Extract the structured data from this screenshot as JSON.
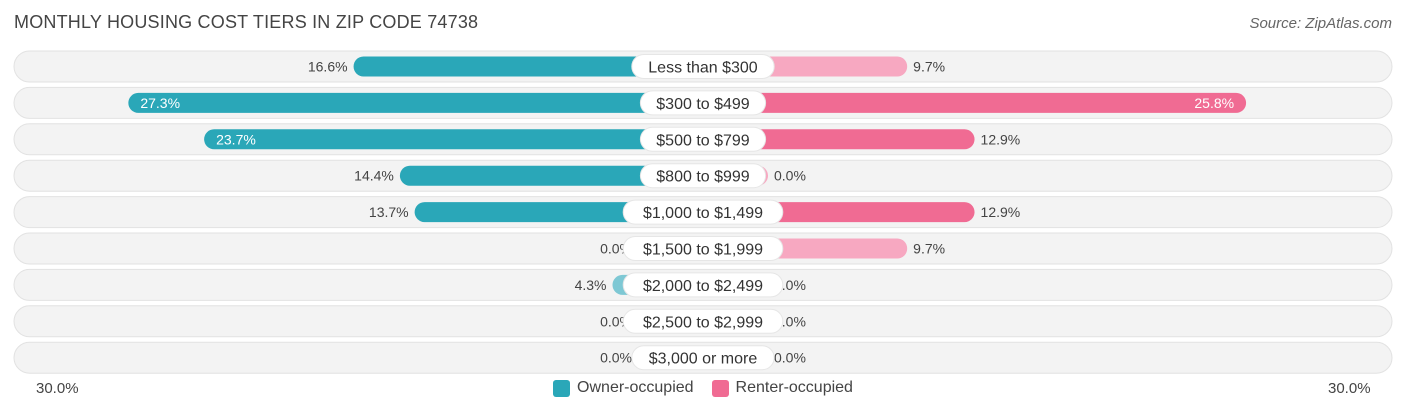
{
  "header": {
    "title": "MONTHLY HOUSING COST TIERS IN ZIP CODE 74738",
    "source": "Source: ZipAtlas.com"
  },
  "colors": {
    "owner_strong": "#2aa7b8",
    "owner_light": "#7ec8d4",
    "renter_strong": "#f06b93",
    "renter_light": "#f7a8c1",
    "track": "#eeeeee"
  },
  "legend": {
    "owner_label": "Owner-occupied",
    "renter_label": "Renter-occupied"
  },
  "axis": {
    "left_label": "30.0%",
    "right_label": "30.0%"
  },
  "chart_data": {
    "type": "bar",
    "title": "MONTHLY HOUSING COST TIERS IN ZIP CODE 74738",
    "orientation": "horizontal-diverging",
    "categories": [
      "Less than $300",
      "$300 to $499",
      "$500 to $799",
      "$800 to $999",
      "$1,000 to $1,499",
      "$1,500 to $1,999",
      "$2,000 to $2,499",
      "$2,500 to $2,999",
      "$3,000 or more"
    ],
    "series": [
      {
        "name": "Owner-occupied",
        "values": [
          16.6,
          27.3,
          23.7,
          14.4,
          13.7,
          0.0,
          4.3,
          0.0,
          0.0
        ],
        "labels": [
          "16.6%",
          "27.3%",
          "23.7%",
          "14.4%",
          "13.7%",
          "0.0%",
          "4.3%",
          "0.0%",
          "0.0%"
        ]
      },
      {
        "name": "Renter-occupied",
        "values": [
          9.7,
          25.8,
          12.9,
          0.0,
          12.9,
          9.7,
          0.0,
          0.0,
          0.0
        ],
        "labels": [
          "9.7%",
          "25.8%",
          "12.9%",
          "0.0%",
          "12.9%",
          "9.7%",
          "0.0%",
          "0.0%",
          "0.0%"
        ]
      }
    ],
    "xlim": [
      -30,
      30
    ],
    "legend_position": "bottom-center"
  }
}
